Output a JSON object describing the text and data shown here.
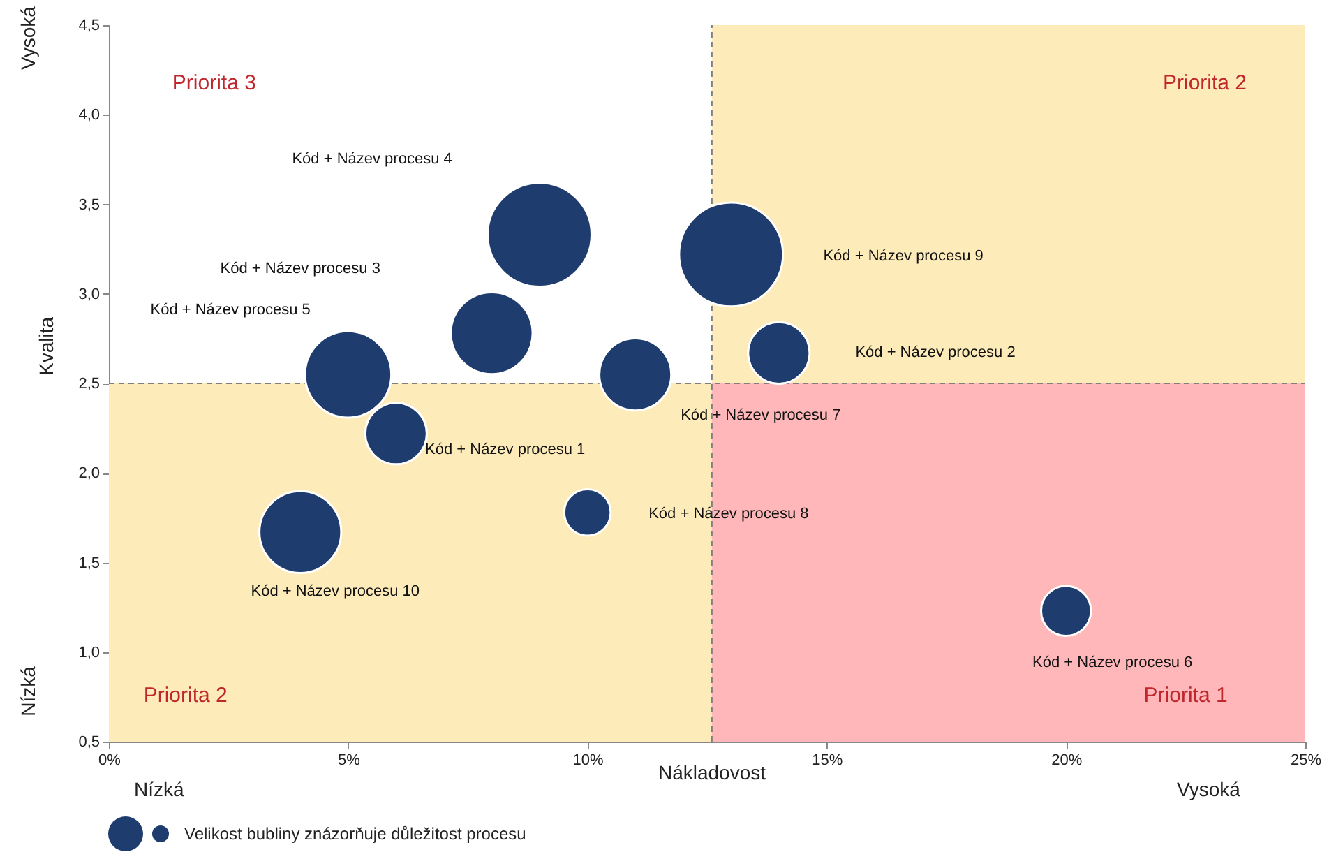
{
  "chart_data": {
    "type": "bubble",
    "xlabel": "Nákladovost",
    "ylabel": "Kvalita",
    "x": [
      6,
      14,
      8,
      9,
      5,
      20,
      11,
      10,
      13,
      4
    ],
    "series": [
      {
        "color": "#1f3c6e",
        "values": [
          2.22,
          2.67,
          2.78,
          3.33,
          2.55,
          1.23,
          2.55,
          1.78,
          3.22,
          1.67
        ],
        "sizes": [
          0.35,
          0.35,
          0.62,
          1,
          0.69,
          0.23,
          0.48,
          0.2,
          1,
          0.62
        ]
      }
    ],
    "marker": "circle",
    "xlim": [
      0,
      25
    ],
    "xticks": [
      {
        "value": 0,
        "label": "0%"
      },
      {
        "value": 5,
        "label": "5%"
      },
      {
        "value": 10,
        "label": "10%"
      },
      {
        "value": 15,
        "label": "15%"
      },
      {
        "value": 20,
        "label": "20%"
      },
      {
        "value": 25,
        "label": "25%"
      }
    ],
    "ylim": [
      0.5,
      4.5
    ],
    "yticks": [
      {
        "value": 0.5,
        "label": "0,5"
      },
      {
        "value": 1,
        "label": "1,0"
      },
      {
        "value": 1.5,
        "label": "1,5"
      },
      {
        "value": 2,
        "label": "2,0"
      },
      {
        "value": 2.5,
        "label": "2,5"
      },
      {
        "value": 3,
        "label": "3,0"
      },
      {
        "value": 3.5,
        "label": "3,5"
      },
      {
        "value": 4,
        "label": "4,0"
      },
      {
        "value": 4.5,
        "label": "4,5"
      }
    ],
    "grid": false,
    "bands": [
      {
        "axis": "x",
        "from": 12.6,
        "to": 25,
        "color": "#fdebb9"
      },
      {
        "axis": "y",
        "from": 0.5,
        "to": 2.5,
        "color": "#fdebb9"
      },
      {
        "axis": "x",
        "from": 12.6,
        "to": 25,
        "color": "#ffb7b9"
      }
    ],
    "ref_lines": [
      {
        "axis": "x",
        "value": 12.6,
        "color": "#7f7f7f",
        "line_style": "dashed"
      },
      {
        "axis": "y",
        "value": 2.5,
        "color": "#7f7f7f",
        "line_style": "dashed"
      }
    ],
    "annotations": [
      "Kód + Název procesu 1",
      "Kód + Název procesu 2",
      "Kód + Název procesu 3",
      "Kód + Název procesu 4",
      "Kód + Název procesu 5",
      "Kód + Název procesu 6",
      "Kód + Název procesu 7",
      "Kód + Název procesu 8",
      "Kód + Název procesu 9",
      "Kód + Název procesu 10",
      "Priorita 3",
      "Priorita 2",
      "Priorita 2",
      "Priorita 1",
      "Vysoká",
      "Nízká",
      "Nízká",
      "Vysoká",
      "Velikost bubliny znázorňuje důležitost procesu"
    ]
  }
}
